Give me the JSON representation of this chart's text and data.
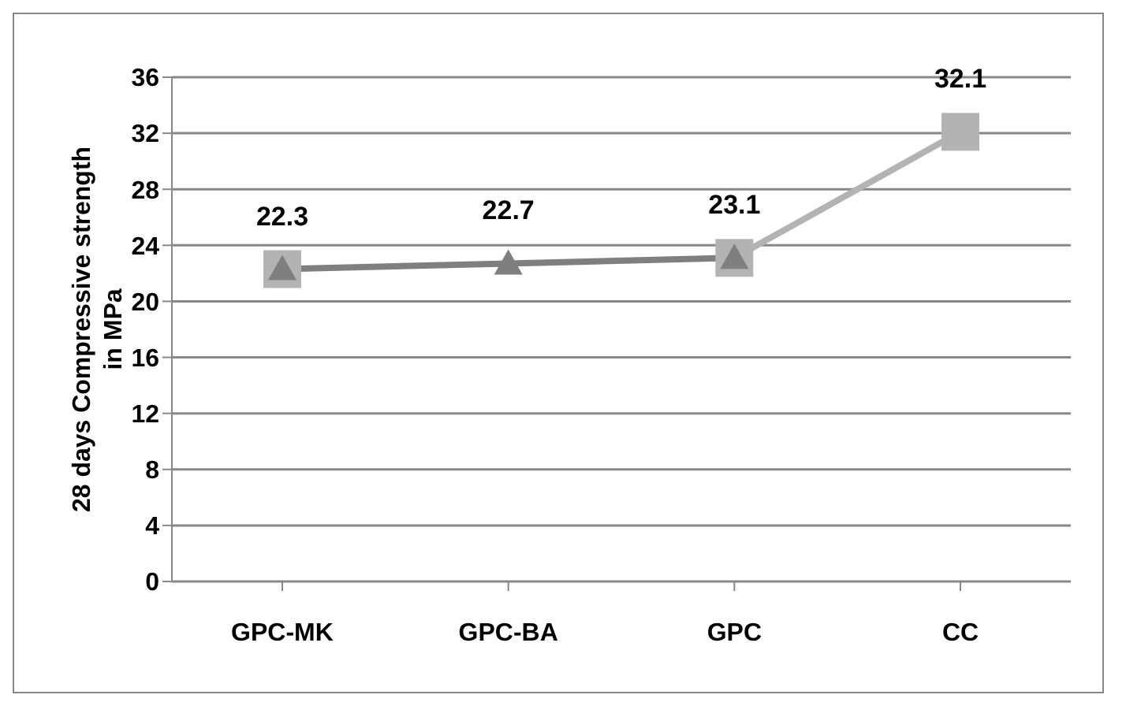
{
  "chart_data": {
    "type": "line",
    "ylabel": "28 days Compressive strength in MPa",
    "categories": [
      "GPC-MK",
      "GPC-BA",
      "GPC",
      "CC"
    ],
    "series": [
      {
        "name": null,
        "color": "#b3b3b3",
        "marker": "square",
        "values": [
          22.3,
          null,
          23.1,
          32.1
        ],
        "value_labels": [
          null,
          null,
          null,
          "32.1"
        ]
      },
      {
        "name": null,
        "color": "#7f7f7f",
        "marker": "triangle",
        "values": [
          22.3,
          22.7,
          23.1,
          null
        ],
        "value_labels": [
          "22.3",
          "22.7",
          "23.1",
          null
        ]
      }
    ],
    "ylim": [
      0,
      36
    ],
    "yticks": [
      0,
      4,
      8,
      12,
      16,
      20,
      24,
      28,
      32,
      36
    ],
    "grid": "y",
    "legend": false
  }
}
